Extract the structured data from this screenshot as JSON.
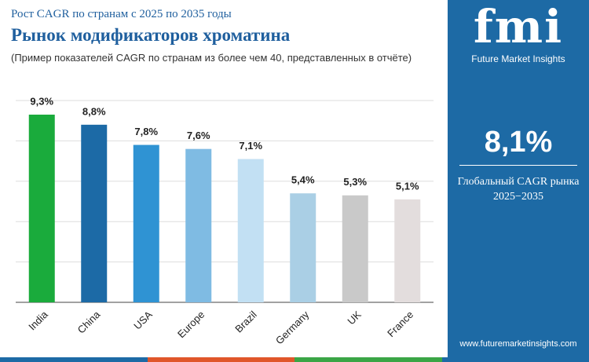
{
  "chart_data": {
    "type": "bar",
    "subtitle": "Рост CAGR по странам с 2025 по 2035 годы",
    "title": "Рынок модификаторов хроматина",
    "note": "(Пример показателей CAGR по странам из более чем 40, представленных в отчёте)",
    "categories": [
      "India",
      "China",
      "USA",
      "Europe",
      "Brazil",
      "Germany",
      "UK",
      "France"
    ],
    "values": [
      9.3,
      8.8,
      7.8,
      7.6,
      7.1,
      5.4,
      5.3,
      5.1
    ],
    "value_labels": [
      "9,3%",
      "8,8%",
      "7,8%",
      "7,6%",
      "7,1%",
      "5,4%",
      "5,3%",
      "5,1%"
    ],
    "colors": [
      "#1aab3c",
      "#1c6aa6",
      "#2f93d3",
      "#7fbbe3",
      "#c2e0f3",
      "#aacfe5",
      "#c9c9c9",
      "#e3dddd"
    ],
    "ylim": [
      0,
      10
    ],
    "yticks": [
      0,
      2,
      4,
      6,
      8,
      10
    ],
    "grid": true
  },
  "panel": {
    "logo": "fmi",
    "brand": "Future Market Insights",
    "cagr": "8,1%",
    "caption": "Глобальный CAGR рынка",
    "period": "2025−2035",
    "website": "www.futuremarketinsights.com"
  }
}
